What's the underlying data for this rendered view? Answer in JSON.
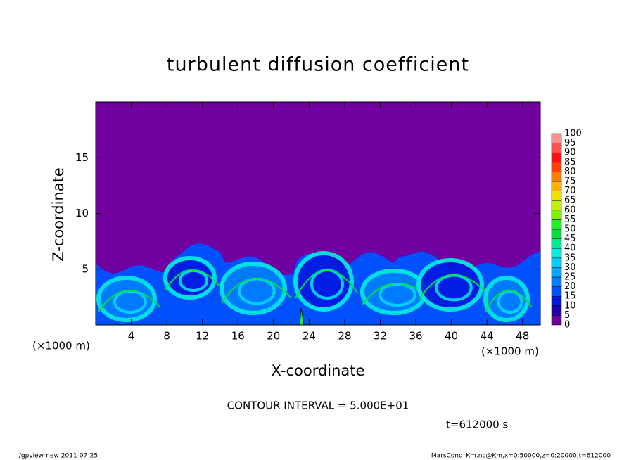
{
  "chart_data": {
    "type": "heatmap",
    "title": "turbulent diffusion coefficient",
    "x_label": "X-coordinate",
    "y_label": "Z-coordinate",
    "x_unit_label": "(×1000 m)",
    "y_unit_label": "(×1000 m)",
    "xlim": [
      0,
      50
    ],
    "ylim": [
      0,
      20
    ],
    "xticks": [
      4,
      8,
      12,
      16,
      20,
      24,
      28,
      32,
      36,
      40,
      44,
      48
    ],
    "yticks": [
      5,
      10,
      15
    ],
    "colorbar": {
      "levels": [
        0,
        5,
        10,
        15,
        20,
        25,
        30,
        35,
        40,
        45,
        50,
        55,
        60,
        65,
        70,
        75,
        80,
        85,
        90,
        95,
        100
      ],
      "colors": [
        "#7000a0",
        "#2000b0",
        "#0018e0",
        "#0050ff",
        "#0080ff",
        "#00a8ff",
        "#00d0ff",
        "#00f0e0",
        "#00e890",
        "#00e040",
        "#20f020",
        "#80f000",
        "#c0f000",
        "#f0e000",
        "#ffb000",
        "#ff8000",
        "#ff4000",
        "#ff1010",
        "#ff5050",
        "#ff9090"
      ]
    },
    "contour_interval": "CONTOUR INTERVAL = 5.000E+01",
    "time_label": "t=612000 s"
  },
  "footer": {
    "left": "./gpview-new   2011-07-25",
    "right": "MarsCond_Km.nc@Km,x=0:50000,z=0:20000,t=612000"
  }
}
